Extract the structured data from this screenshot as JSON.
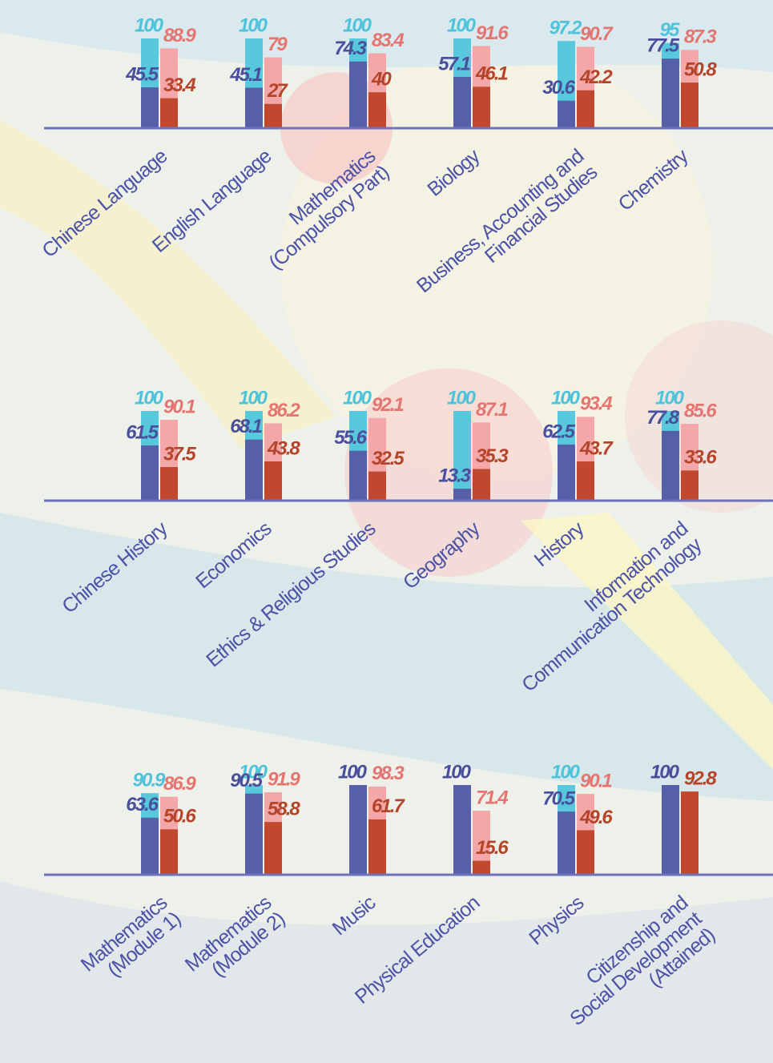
{
  "chart_data": [
    {
      "type": "bar",
      "ylim": [
        0,
        100
      ],
      "categories": [
        "Chinese Language",
        "English Language",
        "Mathematics\n(Compulsory Part)",
        "Biology",
        "Business, Accounting and\nFinancial Studies",
        "Chemistry"
      ],
      "series": [
        {
          "color": "#58c8dc",
          "values": [
            100,
            100,
            100,
            100,
            97.2,
            95
          ]
        },
        {
          "color": "#5560a8",
          "values": [
            45.5,
            45.1,
            74.3,
            57.1,
            30.6,
            77.5
          ]
        },
        {
          "color": "#f3a7a8",
          "values": [
            88.9,
            79,
            83.4,
            91.6,
            90.7,
            87.3
          ]
        },
        {
          "color": "#c0482f",
          "values": [
            33.4,
            27,
            40,
            46.1,
            42.2,
            50.8
          ]
        }
      ]
    },
    {
      "type": "bar",
      "ylim": [
        0,
        100
      ],
      "categories": [
        "Chinese History",
        "Economics",
        "Ethics & Religious Studies",
        "Geography",
        "History",
        "Information and\nCommunication Technology"
      ],
      "series": [
        {
          "color": "#58c8dc",
          "values": [
            100,
            100,
            100,
            100,
            100,
            100
          ]
        },
        {
          "color": "#5560a8",
          "values": [
            61.5,
            68.1,
            55.6,
            13.3,
            62.5,
            77.8
          ]
        },
        {
          "color": "#f3a7a8",
          "values": [
            90.1,
            86.2,
            92.1,
            87.1,
            93.4,
            85.6
          ]
        },
        {
          "color": "#c0482f",
          "values": [
            37.5,
            43.8,
            32.5,
            35.3,
            43.7,
            33.6
          ]
        }
      ]
    },
    {
      "type": "bar",
      "ylim": [
        0,
        100
      ],
      "categories": [
        "Mathematics\n(Module 1)",
        "Mathematics\n(Module 2)",
        "Music",
        "Physical Education",
        "Physics",
        "Citizenship and\nSocial Development\n(Attained)"
      ],
      "series": [
        {
          "color": "#58c8dc",
          "values": [
            90.9,
            100,
            null,
            null,
            100,
            null
          ]
        },
        {
          "color": "#5560a8",
          "values": [
            63.6,
            90.5,
            100,
            100,
            70.5,
            100
          ]
        },
        {
          "color": "#f3a7a8",
          "values": [
            86.9,
            91.9,
            98.3,
            71.4,
            90.1,
            null
          ]
        },
        {
          "color": "#c0482f",
          "values": [
            50.6,
            58.8,
            61.7,
            15.6,
            49.6,
            92.8
          ]
        }
      ]
    }
  ]
}
